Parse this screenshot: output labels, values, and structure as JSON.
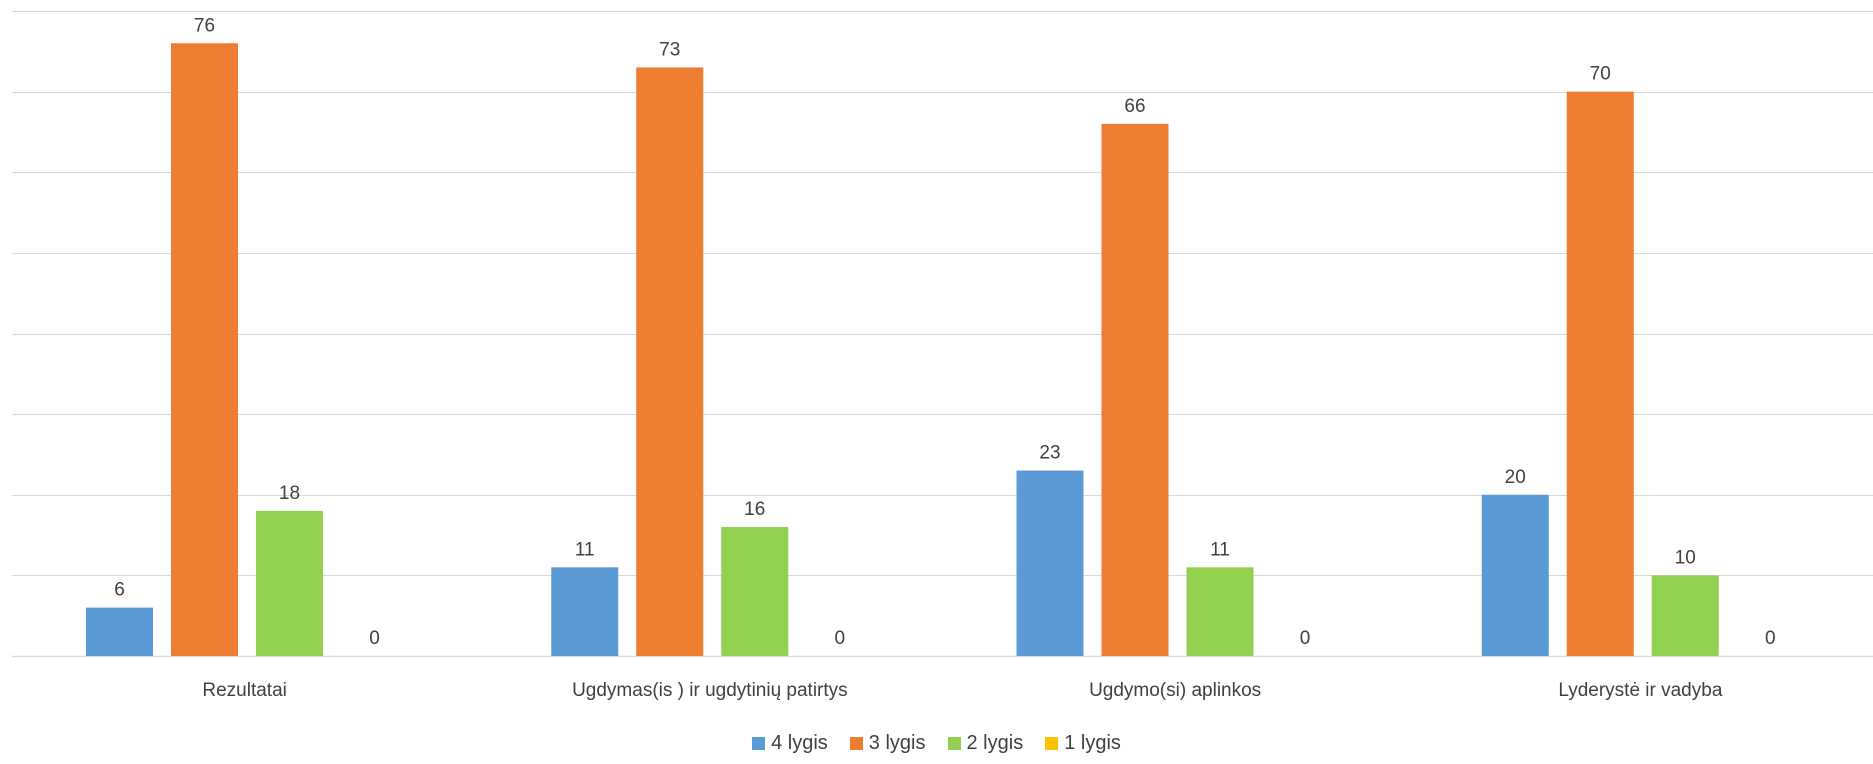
{
  "chart_data": {
    "type": "bar",
    "categories": [
      "Rezultatai",
      "Ugdymas(is ) ir ugdytinių patirtys",
      "Ugdymo(si) aplinkos",
      "Lyderystė ir vadyba"
    ],
    "series": [
      {
        "name": "4 lygis",
        "color": "#5B9BD5",
        "values": [
          6,
          11,
          23,
          20
        ]
      },
      {
        "name": "3 lygis",
        "color": "#ED7D31",
        "values": [
          76,
          73,
          66,
          70
        ]
      },
      {
        "name": "2 lygis",
        "color": "#92D050",
        "values": [
          18,
          16,
          11,
          10
        ]
      },
      {
        "name": "1 lygis",
        "color": "#FFC000",
        "values": [
          0,
          0,
          0,
          0
        ]
      }
    ],
    "ylim": [
      0,
      80
    ],
    "grid": true,
    "data_labels": true,
    "legend_position": "bottom"
  }
}
